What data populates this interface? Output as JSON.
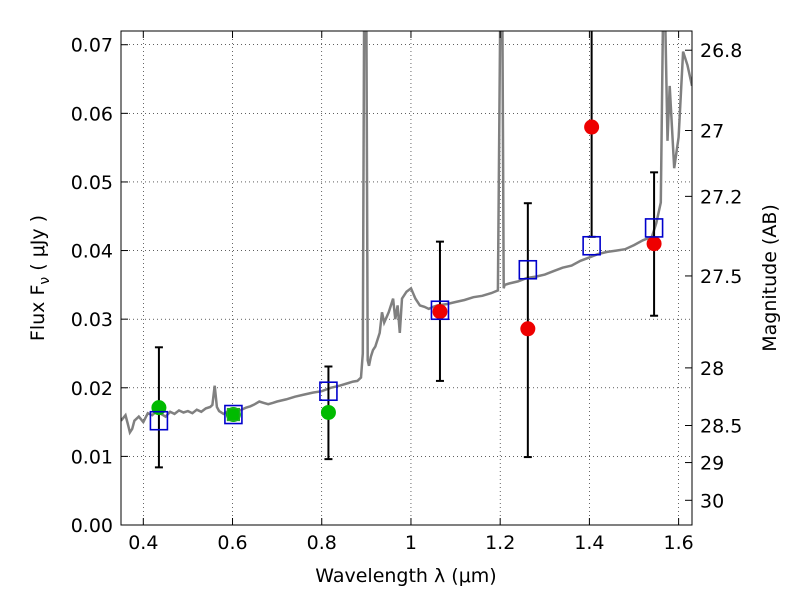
{
  "chart_data": {
    "type": "scatter",
    "xlabel": "Wavelength  λ (μm)",
    "ylabel": "Flux  F",
    "ylabel_sub": "ν",
    "ylabel_unit": " ( μJy )",
    "y2label": "Magnitude (AB)",
    "xlim": [
      0.35,
      1.63
    ],
    "ylim": [
      0.0,
      0.072
    ],
    "grid": true,
    "x_ticks": [
      {
        "value": 0.4,
        "label": "0.4"
      },
      {
        "value": 0.6,
        "label": "0.6"
      },
      {
        "value": 0.8,
        "label": "0.8"
      },
      {
        "value": 1.0,
        "label": "1"
      },
      {
        "value": 1.2,
        "label": "1.2"
      },
      {
        "value": 1.4,
        "label": "1.4"
      },
      {
        "value": 1.6,
        "label": "1.6"
      }
    ],
    "y_ticks": [
      {
        "value": 0.0,
        "label": "0.00"
      },
      {
        "value": 0.01,
        "label": "0.01"
      },
      {
        "value": 0.02,
        "label": "0.02"
      },
      {
        "value": 0.03,
        "label": "0.03"
      },
      {
        "value": 0.04,
        "label": "0.04"
      },
      {
        "value": 0.05,
        "label": "0.05"
      },
      {
        "value": 0.06,
        "label": "0.06"
      },
      {
        "value": 0.07,
        "label": "0.07"
      }
    ],
    "y2_ticks": [
      {
        "flux": 0.0692,
        "label": "26.8"
      },
      {
        "flux": 0.0575,
        "label": "27"
      },
      {
        "flux": 0.0479,
        "label": "27.2"
      },
      {
        "flux": 0.0363,
        "label": "27.5"
      },
      {
        "flux": 0.0229,
        "label": "28"
      },
      {
        "flux": 0.0145,
        "label": "28.5"
      },
      {
        "flux": 0.0091,
        "label": "29"
      },
      {
        "flux": 0.0036,
        "label": "30"
      }
    ],
    "colors": {
      "spectrum": "#808080",
      "model_box": "#0000cc",
      "optical_point": "#00bb00",
      "nir_point": "#ee0000",
      "error_bar": "#000000",
      "green_box": "#22aa22"
    },
    "spectrum": [
      [
        0.35,
        0.0152
      ],
      [
        0.36,
        0.016
      ],
      [
        0.365,
        0.0148
      ],
      [
        0.37,
        0.0135
      ],
      [
        0.375,
        0.014
      ],
      [
        0.38,
        0.0152
      ],
      [
        0.39,
        0.0158
      ],
      [
        0.4,
        0.015
      ],
      [
        0.41,
        0.0163
      ],
      [
        0.42,
        0.016
      ],
      [
        0.43,
        0.0166
      ],
      [
        0.44,
        0.0162
      ],
      [
        0.45,
        0.0158
      ],
      [
        0.46,
        0.0165
      ],
      [
        0.47,
        0.0162
      ],
      [
        0.48,
        0.0167
      ],
      [
        0.49,
        0.0164
      ],
      [
        0.5,
        0.0166
      ],
      [
        0.51,
        0.0163
      ],
      [
        0.52,
        0.0168
      ],
      [
        0.53,
        0.0165
      ],
      [
        0.54,
        0.017
      ],
      [
        0.55,
        0.0172
      ],
      [
        0.555,
        0.0175
      ],
      [
        0.56,
        0.0203
      ],
      [
        0.565,
        0.0172
      ],
      [
        0.57,
        0.0166
      ],
      [
        0.58,
        0.0162
      ],
      [
        0.59,
        0.0166
      ],
      [
        0.6,
        0.0167
      ],
      [
        0.61,
        0.0165
      ],
      [
        0.62,
        0.0168
      ],
      [
        0.63,
        0.0171
      ],
      [
        0.64,
        0.0173
      ],
      [
        0.65,
        0.0176
      ],
      [
        0.66,
        0.018
      ],
      [
        0.67,
        0.0178
      ],
      [
        0.68,
        0.0176
      ],
      [
        0.69,
        0.0178
      ],
      [
        0.7,
        0.018
      ],
      [
        0.72,
        0.0183
      ],
      [
        0.74,
        0.0187
      ],
      [
        0.76,
        0.019
      ],
      [
        0.78,
        0.0193
      ],
      [
        0.8,
        0.0195
      ],
      [
        0.82,
        0.02
      ],
      [
        0.84,
        0.0203
      ],
      [
        0.86,
        0.0207
      ],
      [
        0.87,
        0.0209
      ],
      [
        0.88,
        0.021
      ],
      [
        0.888,
        0.0215
      ],
      [
        0.892,
        0.025
      ],
      [
        0.895,
        0.074
      ],
      [
        0.9,
        0.074
      ],
      [
        0.903,
        0.024
      ],
      [
        0.906,
        0.0232
      ],
      [
        0.91,
        0.0245
      ],
      [
        0.915,
        0.0255
      ],
      [
        0.92,
        0.026
      ],
      [
        0.93,
        0.028
      ],
      [
        0.935,
        0.031
      ],
      [
        0.94,
        0.0295
      ],
      [
        0.95,
        0.031
      ],
      [
        0.96,
        0.033
      ],
      [
        0.965,
        0.03
      ],
      [
        0.97,
        0.032
      ],
      [
        0.975,
        0.028
      ],
      [
        0.98,
        0.033
      ],
      [
        0.99,
        0.034
      ],
      [
        1.0,
        0.0345
      ],
      [
        1.01,
        0.033
      ],
      [
        1.02,
        0.032
      ],
      [
        1.03,
        0.0318
      ],
      [
        1.04,
        0.0315
      ],
      [
        1.05,
        0.0318
      ],
      [
        1.06,
        0.032
      ],
      [
        1.08,
        0.0322
      ],
      [
        1.1,
        0.0325
      ],
      [
        1.12,
        0.0328
      ],
      [
        1.14,
        0.0332
      ],
      [
        1.16,
        0.0334
      ],
      [
        1.18,
        0.0338
      ],
      [
        1.195,
        0.0342
      ],
      [
        1.2,
        0.074
      ],
      [
        1.205,
        0.074
      ],
      [
        1.208,
        0.0345
      ],
      [
        1.21,
        0.035
      ],
      [
        1.22,
        0.0352
      ],
      [
        1.24,
        0.0355
      ],
      [
        1.26,
        0.036
      ],
      [
        1.28,
        0.0362
      ],
      [
        1.3,
        0.0365
      ],
      [
        1.32,
        0.037
      ],
      [
        1.34,
        0.0375
      ],
      [
        1.36,
        0.0378
      ],
      [
        1.38,
        0.0385
      ],
      [
        1.4,
        0.039
      ],
      [
        1.42,
        0.0395
      ],
      [
        1.44,
        0.0398
      ],
      [
        1.46,
        0.04
      ],
      [
        1.48,
        0.0402
      ],
      [
        1.5,
        0.0408
      ],
      [
        1.52,
        0.0415
      ],
      [
        1.54,
        0.042
      ],
      [
        1.55,
        0.044
      ],
      [
        1.56,
        0.047
      ],
      [
        1.565,
        0.074
      ],
      [
        1.57,
        0.074
      ],
      [
        1.575,
        0.056
      ],
      [
        1.58,
        0.064
      ],
      [
        1.59,
        0.052
      ],
      [
        1.6,
        0.0565
      ],
      [
        1.61,
        0.069
      ],
      [
        1.62,
        0.067
      ],
      [
        1.63,
        0.064
      ]
    ],
    "model_boxes": [
      {
        "x": 0.435,
        "y": 0.0152,
        "color": "blue"
      },
      {
        "x": 0.602,
        "y": 0.0161,
        "color": "blue"
      },
      {
        "x": 0.815,
        "y": 0.0195,
        "color": "blue"
      },
      {
        "x": 1.065,
        "y": 0.0313,
        "color": "blue"
      },
      {
        "x": 1.262,
        "y": 0.0372,
        "color": "blue"
      },
      {
        "x": 1.405,
        "y": 0.0407,
        "color": "blue"
      },
      {
        "x": 1.545,
        "y": 0.0433,
        "color": "blue"
      }
    ],
    "points": [
      {
        "x": 0.435,
        "y": 0.0171,
        "color": "green",
        "err_low": 0.0084,
        "err_high": 0.0259
      },
      {
        "x": 0.602,
        "y": 0.0161,
        "color": "green",
        "err_low": null,
        "err_high": null
      },
      {
        "x": 0.815,
        "y": 0.0164,
        "color": "green",
        "err_low": 0.0096,
        "err_high": 0.0231
      },
      {
        "x": 1.065,
        "y": 0.0311,
        "color": "red",
        "err_low": 0.021,
        "err_high": 0.0413
      },
      {
        "x": 1.262,
        "y": 0.0286,
        "color": "red",
        "err_low": 0.0099,
        "err_high": 0.0469
      },
      {
        "x": 1.405,
        "y": 0.058,
        "color": "red",
        "err_low": 0.042,
        "err_high": 0.074
      },
      {
        "x": 1.545,
        "y": 0.041,
        "color": "red",
        "err_low": 0.0305,
        "err_high": 0.0514
      }
    ]
  }
}
